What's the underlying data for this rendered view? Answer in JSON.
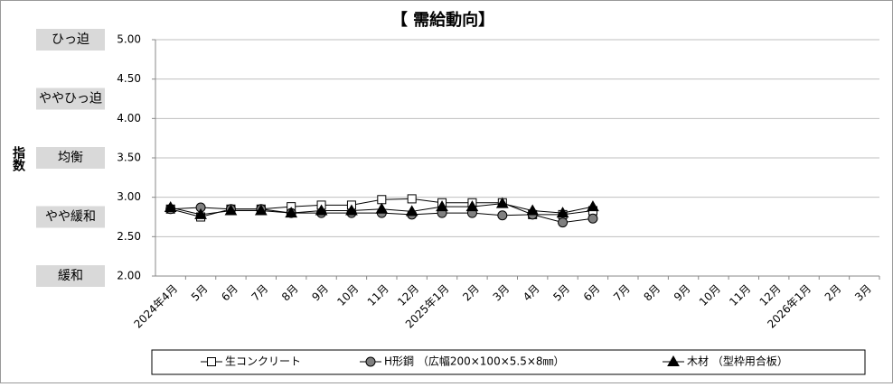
{
  "chart_data": {
    "type": "line",
    "title": "【 需給動向】",
    "ylabel": "指数",
    "band_labels": [
      "ひっ迫",
      "ややひっ迫",
      "均衡",
      "やや緩和",
      "緩和"
    ],
    "categories": [
      "2024年4月",
      "5月",
      "6月",
      "7月",
      "8月",
      "9月",
      "10月",
      "11月",
      "12月",
      "2025年1月",
      "2月",
      "3月",
      "4月",
      "5月",
      "6月",
      "7月",
      "8月",
      "9月",
      "10月",
      "11月",
      "12月",
      "2026年1月",
      "2月",
      "3月"
    ],
    "series": [
      {
        "name": "生コンクリート",
        "color": "#000000",
        "marker": "square",
        "marker_fill": "#ffffff",
        "values": [
          2.85,
          2.75,
          2.85,
          2.85,
          2.88,
          2.9,
          2.9,
          2.97,
          2.98,
          2.93,
          2.93,
          2.93,
          2.78,
          2.78,
          2.83,
          null,
          null,
          null,
          null,
          null,
          null,
          null,
          null,
          null
        ]
      },
      {
        "name": "H形鋼 （広幅200×100×5.5×8㎜）",
        "color": "#000000",
        "marker": "circle",
        "marker_fill": "#808080",
        "values": [
          2.85,
          2.87,
          2.85,
          2.85,
          2.8,
          2.8,
          2.8,
          2.8,
          2.78,
          2.8,
          2.8,
          2.77,
          2.78,
          2.68,
          2.73,
          null,
          null,
          null,
          null,
          null,
          null,
          null,
          null,
          null
        ]
      },
      {
        "name": "木材 （型枠用合板）",
        "color": "#000000",
        "marker": "triangle",
        "marker_fill": "#000000",
        "values": [
          2.87,
          2.78,
          2.83,
          2.83,
          2.8,
          2.83,
          2.83,
          2.85,
          2.82,
          2.88,
          2.88,
          2.92,
          2.83,
          2.8,
          2.88,
          null,
          null,
          null,
          null,
          null,
          null,
          null,
          null,
          null
        ]
      }
    ],
    "ylim": [
      2,
      5
    ],
    "yticks": [
      {
        "value": 2,
        "label": "2.00"
      },
      {
        "value": 2.5,
        "label": "2.50"
      },
      {
        "value": 3,
        "label": "3.00"
      },
      {
        "value": 3.5,
        "label": "3.50"
      },
      {
        "value": 4,
        "label": "4.00"
      },
      {
        "value": 4.5,
        "label": "4.50"
      },
      {
        "value": 5,
        "label": "5.00"
      }
    ],
    "grid": true
  }
}
